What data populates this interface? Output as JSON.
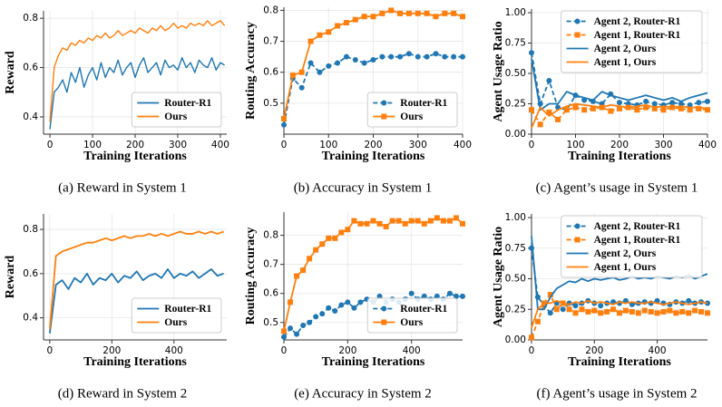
{
  "chart_data": [
    {
      "type": "line",
      "caption": "(a) Reward in System 1",
      "xlabel": "Training Iterations",
      "ylabel": "Reward",
      "x": [
        0,
        10,
        20,
        30,
        40,
        50,
        60,
        70,
        80,
        90,
        100,
        110,
        120,
        130,
        140,
        150,
        160,
        170,
        180,
        190,
        200,
        210,
        220,
        230,
        240,
        250,
        260,
        270,
        280,
        290,
        300,
        310,
        320,
        330,
        340,
        350,
        360,
        370,
        380,
        390,
        400,
        410
      ],
      "series": [
        {
          "name": "Router-R1",
          "color": "#1f77b4",
          "style": "solid",
          "marker": "none",
          "values": [
            0.35,
            0.5,
            0.52,
            0.55,
            0.5,
            0.58,
            0.54,
            0.6,
            0.52,
            0.57,
            0.6,
            0.55,
            0.62,
            0.56,
            0.6,
            0.58,
            0.63,
            0.57,
            0.6,
            0.62,
            0.56,
            0.61,
            0.64,
            0.58,
            0.6,
            0.62,
            0.57,
            0.63,
            0.6,
            0.61,
            0.59,
            0.64,
            0.6,
            0.62,
            0.58,
            0.63,
            0.61,
            0.6,
            0.64,
            0.59,
            0.62,
            0.61
          ]
        },
        {
          "name": "Ours",
          "color": "#ff7f0e",
          "style": "solid",
          "marker": "none",
          "values": [
            0.38,
            0.6,
            0.65,
            0.68,
            0.67,
            0.7,
            0.69,
            0.71,
            0.7,
            0.72,
            0.71,
            0.73,
            0.72,
            0.74,
            0.72,
            0.73,
            0.75,
            0.73,
            0.74,
            0.75,
            0.74,
            0.76,
            0.75,
            0.74,
            0.76,
            0.75,
            0.77,
            0.75,
            0.76,
            0.78,
            0.76,
            0.77,
            0.76,
            0.78,
            0.77,
            0.78,
            0.77,
            0.79,
            0.77,
            0.78,
            0.79,
            0.77
          ]
        }
      ],
      "xlim": [
        -15,
        415
      ],
      "xticks": [
        0,
        100,
        200,
        300,
        400
      ],
      "ylim": [
        0.33,
        0.83
      ],
      "yticks": [
        0.4,
        0.6,
        0.8
      ],
      "grid": true,
      "legend": "lower right"
    },
    {
      "type": "line",
      "caption": "(b) Accuracy in System 1",
      "xlabel": "Training Iterations",
      "ylabel": "Routing Accuracy",
      "x": [
        0,
        20,
        40,
        60,
        80,
        100,
        120,
        140,
        160,
        180,
        200,
        220,
        240,
        260,
        280,
        300,
        320,
        340,
        360,
        380,
        400
      ],
      "series": [
        {
          "name": "Router-R1",
          "color": "#1f77b4",
          "style": "dashed",
          "marker": "circle",
          "values": [
            0.43,
            0.58,
            0.55,
            0.63,
            0.6,
            0.62,
            0.63,
            0.65,
            0.64,
            0.63,
            0.64,
            0.65,
            0.65,
            0.65,
            0.66,
            0.65,
            0.65,
            0.66,
            0.65,
            0.65,
            0.65
          ]
        },
        {
          "name": "Ours",
          "color": "#ff7f0e",
          "style": "solid",
          "marker": "square",
          "values": [
            0.45,
            0.59,
            0.6,
            0.7,
            0.72,
            0.73,
            0.75,
            0.76,
            0.77,
            0.78,
            0.78,
            0.79,
            0.8,
            0.79,
            0.79,
            0.79,
            0.79,
            0.78,
            0.79,
            0.79,
            0.78
          ]
        }
      ],
      "xlim": [
        0,
        400
      ],
      "xticks": [
        0,
        100,
        200,
        300,
        400
      ],
      "ylim": [
        0.4,
        0.81
      ],
      "yticks": [
        0.5,
        0.6,
        0.7,
        0.8
      ],
      "grid": true,
      "legend": "lower right"
    },
    {
      "type": "line",
      "caption": "(c) Agent’s usage in System 1",
      "xlabel": "Training Iterations",
      "ylabel": "Agent Usage Ratio",
      "x": [
        0,
        20,
        40,
        60,
        80,
        100,
        120,
        140,
        160,
        180,
        200,
        220,
        240,
        260,
        280,
        300,
        320,
        340,
        360,
        380,
        400
      ],
      "series": [
        {
          "name": "Agent 2, Router-R1",
          "color": "#1f77b4",
          "style": "dashed",
          "marker": "circle",
          "values": [
            0.67,
            0.25,
            0.44,
            0.22,
            0.2,
            0.32,
            0.28,
            0.27,
            0.25,
            0.33,
            0.26,
            0.25,
            0.24,
            0.27,
            0.25,
            0.24,
            0.26,
            0.25,
            0.24,
            0.26,
            0.27
          ]
        },
        {
          "name": "Agent 1, Router-R1",
          "color": "#ff7f0e",
          "style": "dashed",
          "marker": "square",
          "values": [
            0.2,
            0.08,
            0.18,
            0.12,
            0.2,
            0.22,
            0.2,
            0.21,
            0.22,
            0.19,
            0.21,
            0.22,
            0.2,
            0.22,
            0.21,
            0.2,
            0.22,
            0.21,
            0.2,
            0.21,
            0.2
          ]
        },
        {
          "name": "Agent 2, Ours",
          "color": "#1f77b4",
          "style": "solid",
          "marker": "none",
          "values": [
            0.62,
            0.2,
            0.25,
            0.25,
            0.35,
            0.32,
            0.3,
            0.28,
            0.35,
            0.32,
            0.3,
            0.28,
            0.3,
            0.32,
            0.3,
            0.28,
            0.3,
            0.27,
            0.3,
            0.32,
            0.34
          ]
        },
        {
          "name": "Agent 1, Ours",
          "color": "#ff7f0e",
          "style": "solid",
          "marker": "none",
          "values": [
            0.05,
            0.22,
            0.15,
            0.2,
            0.23,
            0.25,
            0.24,
            0.23,
            0.22,
            0.24,
            0.23,
            0.22,
            0.23,
            0.24,
            0.22,
            0.23,
            0.22,
            0.23,
            0.22,
            0.22,
            0.21
          ]
        }
      ],
      "xlim": [
        0,
        400
      ],
      "xticks": [
        0,
        100,
        200,
        300,
        400
      ],
      "ylim": [
        0,
        1.03
      ],
      "yticks": [
        {
          "value": 0,
          "label": "0.00"
        },
        {
          "value": 0.25,
          "label": "0.25"
        },
        {
          "value": 0.5,
          "label": "0.50"
        },
        {
          "value": 0.75,
          "label": "0.75"
        },
        {
          "value": 1,
          "label": "1.00"
        }
      ],
      "grid": true,
      "legend": "upper right"
    },
    {
      "type": "line",
      "caption": "(d) Reward in System 2",
      "xlabel": "Training Iterations",
      "ylabel": "Reward",
      "x": [
        0,
        20,
        40,
        60,
        80,
        100,
        120,
        140,
        160,
        180,
        200,
        220,
        240,
        260,
        280,
        300,
        320,
        340,
        360,
        380,
        400,
        420,
        440,
        460,
        480,
        500,
        520,
        540,
        560
      ],
      "series": [
        {
          "name": "Router-R1",
          "color": "#1f77b4",
          "style": "solid",
          "marker": "none",
          "values": [
            0.33,
            0.55,
            0.57,
            0.53,
            0.58,
            0.56,
            0.6,
            0.55,
            0.58,
            0.57,
            0.6,
            0.56,
            0.59,
            0.58,
            0.61,
            0.57,
            0.59,
            0.6,
            0.58,
            0.62,
            0.58,
            0.6,
            0.59,
            0.61,
            0.58,
            0.6,
            0.62,
            0.59,
            0.6
          ]
        },
        {
          "name": "Ours",
          "color": "#ff7f0e",
          "style": "solid",
          "marker": "none",
          "values": [
            0.35,
            0.68,
            0.7,
            0.71,
            0.72,
            0.73,
            0.74,
            0.74,
            0.75,
            0.76,
            0.75,
            0.76,
            0.77,
            0.76,
            0.77,
            0.77,
            0.78,
            0.77,
            0.78,
            0.77,
            0.78,
            0.79,
            0.78,
            0.78,
            0.79,
            0.78,
            0.79,
            0.78,
            0.79
          ]
        }
      ],
      "xlim": [
        -20,
        570
      ],
      "xticks": [
        0,
        200,
        400
      ],
      "ylim": [
        0.3,
        0.87
      ],
      "yticks": [
        0.4,
        0.6,
        0.8
      ],
      "grid": true,
      "legend": "lower right"
    },
    {
      "type": "line",
      "caption": "(e) Accuracy in System 2",
      "xlabel": "Training Iterations",
      "ylabel": "Routing Accuracy",
      "x": [
        0,
        20,
        40,
        60,
        80,
        100,
        120,
        140,
        160,
        180,
        200,
        220,
        240,
        260,
        280,
        300,
        320,
        340,
        360,
        380,
        400,
        420,
        440,
        460,
        480,
        500,
        520,
        540,
        560
      ],
      "series": [
        {
          "name": "Router-R1",
          "color": "#1f77b4",
          "style": "dashed",
          "marker": "circle",
          "values": [
            0.45,
            0.48,
            0.46,
            0.49,
            0.5,
            0.52,
            0.53,
            0.55,
            0.54,
            0.56,
            0.57,
            0.55,
            0.57,
            0.58,
            0.57,
            0.59,
            0.57,
            0.58,
            0.57,
            0.58,
            0.6,
            0.58,
            0.59,
            0.58,
            0.59,
            0.58,
            0.6,
            0.59,
            0.59
          ]
        },
        {
          "name": "Ours",
          "color": "#ff7f0e",
          "style": "solid",
          "marker": "square",
          "values": [
            0.47,
            0.57,
            0.66,
            0.68,
            0.72,
            0.75,
            0.77,
            0.79,
            0.79,
            0.81,
            0.82,
            0.85,
            0.84,
            0.84,
            0.85,
            0.84,
            0.83,
            0.85,
            0.85,
            0.84,
            0.85,
            0.85,
            0.84,
            0.85,
            0.86,
            0.85,
            0.85,
            0.86,
            0.84
          ]
        }
      ],
      "xlim": [
        0,
        560
      ],
      "xticks": [
        0,
        200,
        400
      ],
      "ylim": [
        0.44,
        0.88
      ],
      "yticks": [
        0.5,
        0.6,
        0.7,
        0.8
      ],
      "grid": true,
      "legend": "lower right"
    },
    {
      "type": "line",
      "caption": "(f) Agent’s usage in System 2",
      "xlabel": "Training Iterations",
      "ylabel": "Agent Usage Ratio",
      "x": [
        0,
        20,
        40,
        60,
        80,
        100,
        120,
        140,
        160,
        180,
        200,
        220,
        240,
        260,
        280,
        300,
        320,
        340,
        360,
        380,
        400,
        420,
        440,
        460,
        480,
        500,
        520,
        540,
        560
      ],
      "series": [
        {
          "name": "Agent 2, Router-R1",
          "color": "#1f77b4",
          "style": "dashed",
          "marker": "circle",
          "values": [
            0.75,
            0.35,
            0.28,
            0.22,
            0.3,
            0.25,
            0.3,
            0.28,
            0.3,
            0.32,
            0.3,
            0.28,
            0.3,
            0.31,
            0.3,
            0.32,
            0.29,
            0.3,
            0.31,
            0.3,
            0.32,
            0.3,
            0.29,
            0.31,
            0.3,
            0.32,
            0.3,
            0.31,
            0.3
          ]
        },
        {
          "name": "Agent 1, Router-R1",
          "color": "#ff7f0e",
          "style": "dashed",
          "marker": "square",
          "values": [
            0.02,
            0.15,
            0.3,
            0.37,
            0.25,
            0.3,
            0.25,
            0.22,
            0.25,
            0.23,
            0.24,
            0.22,
            0.23,
            0.25,
            0.22,
            0.24,
            0.23,
            0.22,
            0.24,
            0.23,
            0.22,
            0.23,
            0.24,
            0.22,
            0.23,
            0.22,
            0.24,
            0.23,
            0.22
          ]
        },
        {
          "name": "Agent 2, Ours",
          "color": "#1f77b4",
          "style": "solid",
          "marker": "none",
          "values": [
            0.85,
            0.25,
            0.25,
            0.35,
            0.42,
            0.45,
            0.48,
            0.47,
            0.5,
            0.48,
            0.5,
            0.49,
            0.5,
            0.51,
            0.49,
            0.5,
            0.52,
            0.5,
            0.51,
            0.5,
            0.52,
            0.51,
            0.5,
            0.52,
            0.51,
            0.53,
            0.5,
            0.52,
            0.54
          ]
        },
        {
          "name": "Agent 1, Ours",
          "color": "#ff7f0e",
          "style": "solid",
          "marker": "none",
          "values": [
            0.1,
            0.25,
            0.3,
            0.3,
            0.32,
            0.3,
            0.29,
            0.31,
            0.3,
            0.32,
            0.3,
            0.31,
            0.3,
            0.29,
            0.31,
            0.3,
            0.31,
            0.3,
            0.3,
            0.31,
            0.3,
            0.29,
            0.3,
            0.31,
            0.3,
            0.29,
            0.3,
            0.31,
            0.3
          ]
        }
      ],
      "xlim": [
        0,
        560
      ],
      "xticks": [
        0,
        200,
        400
      ],
      "ylim": [
        0,
        1.03
      ],
      "yticks": [
        {
          "value": 0,
          "label": "0.00"
        },
        {
          "value": 0.25,
          "label": "0.25"
        },
        {
          "value": 0.5,
          "label": "0.50"
        },
        {
          "value": 0.75,
          "label": "0.75"
        },
        {
          "value": 1,
          "label": "1.00"
        }
      ],
      "grid": true,
      "legend": "upper right"
    }
  ]
}
